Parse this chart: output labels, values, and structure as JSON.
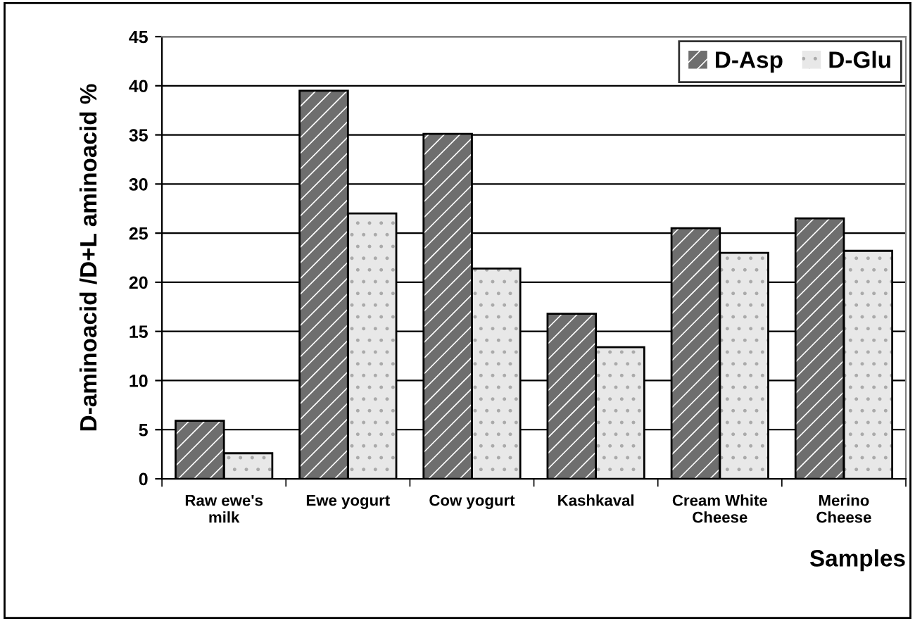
{
  "chart_data": {
    "type": "bar",
    "xlabel": "Samples",
    "ylabel": "D-aminoacid /D+L aminoacid %",
    "categories": [
      "Raw ewe's\nmilk",
      "Ewe yogurt",
      "Cow yogurt",
      "Kashkaval",
      "Cream White\nCheese",
      "Merino\nCheese"
    ],
    "series": [
      {
        "name": "D-Asp",
        "color": "#6e6e6e",
        "values": [
          5.9,
          39.5,
          35.1,
          16.8,
          25.5,
          26.5
        ]
      },
      {
        "name": "D-Glu",
        "color": "#e8e8e8",
        "values": [
          2.6,
          27.0,
          21.4,
          13.4,
          23.0,
          23.2
        ]
      }
    ],
    "ylim": [
      0,
      45
    ],
    "yticks": [
      0,
      5,
      10,
      15,
      20,
      25,
      30,
      35,
      40,
      45
    ],
    "grid": "y",
    "legend": "top right"
  }
}
